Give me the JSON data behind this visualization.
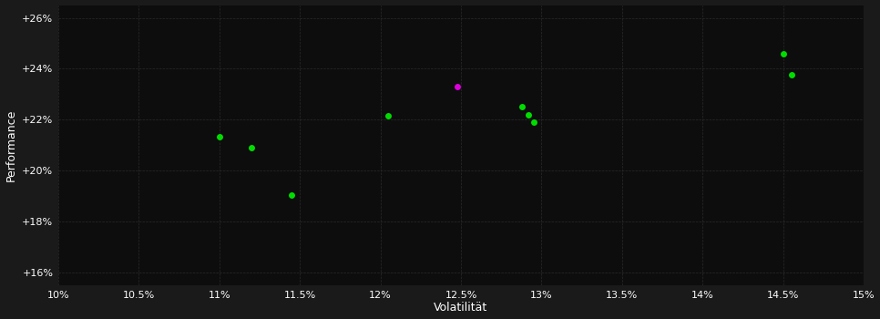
{
  "background_color": "#1a1a1a",
  "plot_bg_color": "#0d0d0d",
  "grid_color": "#2a2a2a",
  "text_color": "#ffffff",
  "xlabel": "Volatilität",
  "ylabel": "Performance",
  "xlim": [
    0.1,
    0.15
  ],
  "ylim": [
    0.155,
    0.265
  ],
  "xticks": [
    0.1,
    0.105,
    0.11,
    0.115,
    0.12,
    0.125,
    0.13,
    0.135,
    0.14,
    0.145,
    0.15
  ],
  "yticks": [
    0.16,
    0.18,
    0.2,
    0.22,
    0.24,
    0.26
  ],
  "green_points": [
    [
      0.11,
      0.2135
    ],
    [
      0.112,
      0.209
    ],
    [
      0.1145,
      0.1905
    ],
    [
      0.1205,
      0.2215
    ],
    [
      0.1288,
      0.225
    ],
    [
      0.1292,
      0.222
    ],
    [
      0.1295,
      0.219
    ],
    [
      0.145,
      0.246
    ],
    [
      0.1455,
      0.2375
    ]
  ],
  "magenta_points": [
    [
      0.1248,
      0.233
    ]
  ],
  "green_color": "#00dd00",
  "magenta_color": "#dd00dd",
  "marker_size": 5
}
